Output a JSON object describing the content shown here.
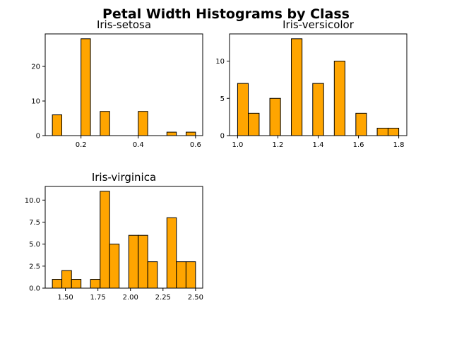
{
  "suptitle": "Petal Width Histograms by Class",
  "colors": {
    "bar_fill": "#ffa500",
    "bar_edge": "#000000"
  },
  "chart_data": [
    {
      "type": "bar",
      "title": "Iris-setosa",
      "xlabel": "",
      "ylabel": "",
      "xlim": [
        0.075,
        0.625
      ],
      "ylim": [
        0,
        29.4
      ],
      "xticks": [
        0.2,
        0.4,
        0.6
      ],
      "xtick_labels": [
        "0.2",
        "0.4",
        "0.6"
      ],
      "yticks": [
        0,
        10,
        20
      ],
      "ytick_labels": [
        "0",
        "10",
        "20"
      ],
      "bins": [
        [
          0.1,
          0.133,
          6
        ],
        [
          0.2,
          0.233,
          28
        ],
        [
          0.267,
          0.3,
          7
        ],
        [
          0.4,
          0.433,
          7
        ],
        [
          0.5,
          0.533,
          1
        ],
        [
          0.567,
          0.6,
          1
        ]
      ]
    },
    {
      "type": "bar",
      "title": "Iris-versicolor",
      "xlabel": "",
      "ylabel": "",
      "xlim": [
        0.96,
        1.84
      ],
      "ylim": [
        0,
        13.65
      ],
      "xticks": [
        1.0,
        1.2,
        1.4,
        1.6,
        1.8
      ],
      "xtick_labels": [
        "1.0",
        "1.2",
        "1.4",
        "1.6",
        "1.8"
      ],
      "yticks": [
        0,
        5,
        10
      ],
      "ytick_labels": [
        "0",
        "5",
        "10"
      ],
      "bins": [
        [
          1.0,
          1.053,
          7
        ],
        [
          1.053,
          1.107,
          3
        ],
        [
          1.16,
          1.213,
          5
        ],
        [
          1.267,
          1.32,
          13
        ],
        [
          1.373,
          1.427,
          7
        ],
        [
          1.48,
          1.533,
          10
        ],
        [
          1.587,
          1.64,
          3
        ],
        [
          1.693,
          1.747,
          1
        ],
        [
          1.747,
          1.8,
          1
        ]
      ]
    },
    {
      "type": "bar",
      "title": "Iris-virginica",
      "xlabel": "",
      "ylabel": "",
      "xlim": [
        1.345,
        2.555
      ],
      "ylim": [
        0,
        11.55
      ],
      "xticks": [
        1.5,
        1.75,
        2.0,
        2.25,
        2.5
      ],
      "xtick_labels": [
        "1.50",
        "1.75",
        "2.00",
        "2.25",
        "2.50"
      ],
      "yticks": [
        0,
        2.5,
        5.0,
        7.5,
        10.0
      ],
      "ytick_labels": [
        "0.0",
        "2.5",
        "5.0",
        "7.5",
        "10.0"
      ],
      "bins": [
        [
          1.4,
          1.473,
          1
        ],
        [
          1.473,
          1.547,
          2
        ],
        [
          1.547,
          1.62,
          1
        ],
        [
          1.693,
          1.767,
          1
        ],
        [
          1.767,
          1.84,
          11
        ],
        [
          1.84,
          1.913,
          5
        ],
        [
          1.987,
          2.06,
          6
        ],
        [
          2.06,
          2.133,
          6
        ],
        [
          2.133,
          2.207,
          3
        ],
        [
          2.28,
          2.353,
          8
        ],
        [
          2.353,
          2.427,
          3
        ],
        [
          2.427,
          2.5,
          3
        ]
      ]
    }
  ]
}
